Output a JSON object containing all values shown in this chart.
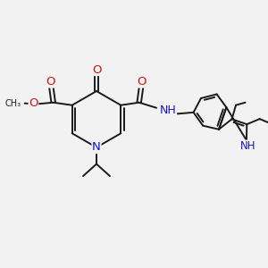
{
  "bg_color": "#f2f2f2",
  "bond_color": "#1a1a1a",
  "bond_width": 1.4,
  "N_color": "#1414cc",
  "O_color": "#cc1414",
  "NH_indole_color": "#1414cc",
  "NH_amide_color": "#1414cc",
  "font_size": 8.5,
  "figsize": [
    3.0,
    3.0
  ],
  "dpi": 100,
  "xlim": [
    0,
    10
  ],
  "ylim": [
    0,
    10
  ]
}
